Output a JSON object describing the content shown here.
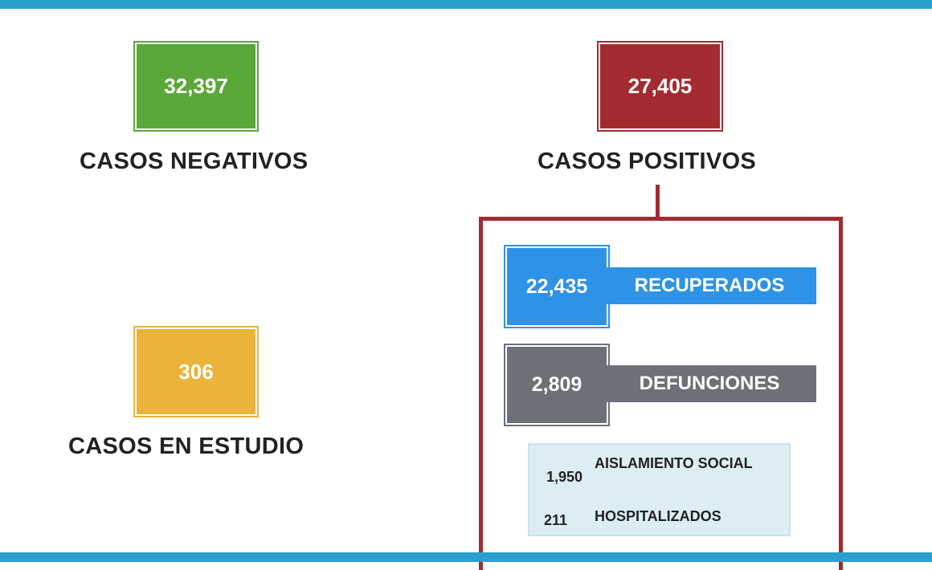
{
  "colors": {
    "accent_bar": "#2aa0cc",
    "negativos": "#5aa83a",
    "positivos": "#a32b30",
    "en_estudio": "#ebb33a",
    "recuperados": "#2e92e6",
    "defunciones": "#6c7077",
    "detail_panel": "#dcedf4"
  },
  "negativos": {
    "value": "32,397",
    "label": "CASOS NEGATIVOS"
  },
  "positivos": {
    "value": "27,405",
    "label": "CASOS POSITIVOS"
  },
  "en_estudio": {
    "value": "306",
    "label": "CASOS EN ESTUDIO"
  },
  "recuperados": {
    "value": "22,435",
    "label": "RECUPERADOS"
  },
  "defunciones": {
    "value": "2,809",
    "label": "DEFUNCIONES"
  },
  "detail": {
    "aislamiento": {
      "value": "1,950",
      "label": "AISLAMIENTO SOCIAL"
    },
    "hospitalizados": {
      "value": "211",
      "label": "HOSPITALIZADOS"
    }
  }
}
